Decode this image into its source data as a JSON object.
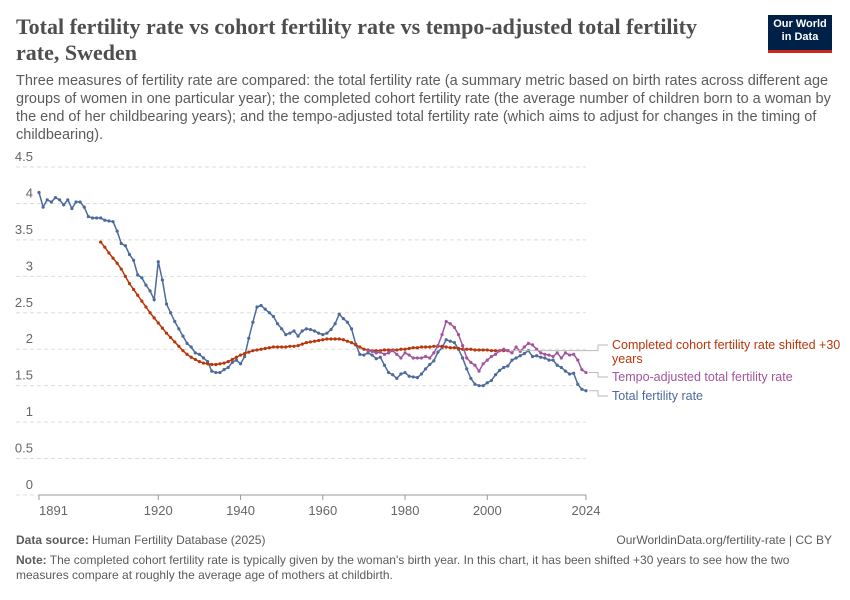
{
  "chart_data": {
    "type": "line",
    "title": "Total fertility rate vs cohort fertility rate vs tempo-adjusted total fertility rate, Sweden",
    "subtitle": "Three measures of fertility rate are compared: the total fertility rate (a summary metric based on birth rates across different age groups of women in one particular year); the completed cohort fertility rate (the average number of children born to a woman by the end of her childbearing years); and the tempo-adjusted total fertility rate (which aims to adjust for changes in the timing of childbearing).",
    "logo": "Our World in Data",
    "source_label": "Data source:",
    "source": "Human Fertility Database (2025)",
    "url": "OurWorldinData.org/fertility-rate | CC BY",
    "note_label": "Note:",
    "note": "The completed cohort fertility rate is typically given by the woman's birth year. In this chart, it has been shifted +30 years to see how the two measures compare at roughly the average age of mothers at childbirth.",
    "xlim": [
      1891,
      2024
    ],
    "xticks": [
      1891,
      1920,
      1940,
      1960,
      1980,
      2000,
      2024
    ],
    "ylim": [
      0,
      4.5
    ],
    "yticks": [
      0,
      0.5,
      1,
      1.5,
      2,
      2.5,
      3,
      3.5,
      4,
      4.5
    ],
    "grid": true,
    "x": [
      1891,
      1892,
      1893,
      1894,
      1895,
      1896,
      1897,
      1898,
      1899,
      1900,
      1901,
      1902,
      1903,
      1904,
      1905,
      1906,
      1907,
      1908,
      1909,
      1910,
      1911,
      1912,
      1913,
      1914,
      1915,
      1916,
      1917,
      1918,
      1919,
      1920,
      1921,
      1922,
      1923,
      1924,
      1925,
      1926,
      1927,
      1928,
      1929,
      1930,
      1931,
      1932,
      1933,
      1934,
      1935,
      1936,
      1937,
      1938,
      1939,
      1940,
      1941,
      1942,
      1943,
      1944,
      1945,
      1946,
      1947,
      1948,
      1949,
      1950,
      1951,
      1952,
      1953,
      1954,
      1955,
      1956,
      1957,
      1958,
      1959,
      1960,
      1961,
      1962,
      1963,
      1964,
      1965,
      1966,
      1967,
      1968,
      1969,
      1970,
      1971,
      1972,
      1973,
      1974,
      1975,
      1976,
      1977,
      1978,
      1979,
      1980,
      1981,
      1982,
      1983,
      1984,
      1985,
      1986,
      1987,
      1988,
      1989,
      1990,
      1991,
      1992,
      1993,
      1994,
      1995,
      1996,
      1997,
      1998,
      1999,
      2000,
      2001,
      2002,
      2003,
      2004,
      2005,
      2006,
      2007,
      2008,
      2009,
      2010,
      2011,
      2012,
      2013,
      2014,
      2015,
      2016,
      2017,
      2018,
      2019,
      2020,
      2021,
      2022,
      2023,
      2024
    ],
    "series": [
      {
        "name": "Total fertility rate",
        "color": "#4c6a9c",
        "values": [
          4.15,
          3.95,
          4.05,
          4.02,
          4.08,
          4.05,
          3.98,
          4.05,
          3.93,
          4.02,
          4.02,
          3.95,
          3.82,
          3.8,
          3.8,
          3.8,
          3.77,
          3.76,
          3.75,
          3.62,
          3.45,
          3.42,
          3.3,
          3.22,
          3.02,
          2.98,
          2.88,
          2.8,
          2.68,
          3.2,
          2.95,
          2.62,
          2.5,
          2.38,
          2.28,
          2.18,
          2.08,
          2.03,
          1.95,
          1.93,
          1.88,
          1.83,
          1.7,
          1.68,
          1.68,
          1.72,
          1.75,
          1.82,
          1.85,
          1.8,
          1.9,
          2.15,
          2.37,
          2.58,
          2.6,
          2.55,
          2.5,
          2.45,
          2.35,
          2.28,
          2.2,
          2.22,
          2.25,
          2.18,
          2.25,
          2.28,
          2.27,
          2.25,
          2.22,
          2.2,
          2.22,
          2.27,
          2.35,
          2.48,
          2.42,
          2.37,
          2.28,
          2.07,
          1.93,
          1.92,
          1.95,
          1.92,
          1.87,
          1.89,
          1.78,
          1.68,
          1.65,
          1.6,
          1.66,
          1.68,
          1.63,
          1.62,
          1.61,
          1.66,
          1.73,
          1.79,
          1.84,
          1.96,
          2.02,
          2.13,
          2.11,
          2.09,
          2.0,
          1.88,
          1.73,
          1.6,
          1.52,
          1.5,
          1.5,
          1.54,
          1.57,
          1.65,
          1.71,
          1.75,
          1.77,
          1.85,
          1.88,
          1.91,
          1.94,
          1.98,
          1.9,
          1.91,
          1.89,
          1.88,
          1.85,
          1.85,
          1.78,
          1.75,
          1.7,
          1.66,
          1.67,
          1.52,
          1.45,
          1.43
        ]
      },
      {
        "name": "Completed cohort fertility rate shifted +30 years",
        "color": "#b8360a",
        "values": [
          null,
          null,
          null,
          null,
          null,
          null,
          null,
          null,
          null,
          null,
          null,
          null,
          null,
          null,
          null,
          3.47,
          3.4,
          3.32,
          3.25,
          3.18,
          3.1,
          3.0,
          2.9,
          2.82,
          2.74,
          2.66,
          2.58,
          2.5,
          2.43,
          2.36,
          2.29,
          2.22,
          2.16,
          2.1,
          2.04,
          1.98,
          1.93,
          1.89,
          1.86,
          1.83,
          1.81,
          1.8,
          1.79,
          1.79,
          1.8,
          1.81,
          1.83,
          1.86,
          1.89,
          1.92,
          1.94,
          1.96,
          1.98,
          1.99,
          2.0,
          2.01,
          2.02,
          2.03,
          2.03,
          2.03,
          2.03,
          2.04,
          2.04,
          2.05,
          2.07,
          2.09,
          2.1,
          2.11,
          2.12,
          2.13,
          2.14,
          2.14,
          2.14,
          2.14,
          2.13,
          2.11,
          2.09,
          2.06,
          2.03,
          2.0,
          1.99,
          1.98,
          1.98,
          1.98,
          1.99,
          1.99,
          1.99,
          1.99,
          2.0,
          2.0,
          2.01,
          2.02,
          2.02,
          2.03,
          2.03,
          2.03,
          2.04,
          2.04,
          2.04,
          2.03,
          2.02,
          2.02,
          2.01,
          2.0,
          2.0,
          2.0,
          1.99,
          1.99,
          1.99,
          1.99,
          1.98,
          1.98,
          1.98,
          1.98,
          1.98,
          null,
          null,
          null,
          null,
          null,
          null,
          null,
          null,
          null,
          null,
          null,
          null,
          null,
          null,
          null,
          null,
          null,
          null,
          null
        ]
      },
      {
        "name": "Tempo-adjusted total fertility rate",
        "color": "#a2559c",
        "values": [
          null,
          null,
          null,
          null,
          null,
          null,
          null,
          null,
          null,
          null,
          null,
          null,
          null,
          null,
          null,
          null,
          null,
          null,
          null,
          null,
          null,
          null,
          null,
          null,
          null,
          null,
          null,
          null,
          null,
          null,
          null,
          null,
          null,
          null,
          null,
          null,
          null,
          null,
          null,
          null,
          null,
          null,
          null,
          null,
          null,
          null,
          null,
          null,
          null,
          null,
          null,
          null,
          null,
          null,
          null,
          null,
          null,
          null,
          null,
          null,
          null,
          null,
          null,
          null,
          null,
          null,
          null,
          null,
          null,
          null,
          null,
          null,
          null,
          null,
          null,
          null,
          null,
          null,
          null,
          null,
          1.98,
          1.97,
          1.95,
          1.96,
          1.93,
          1.95,
          1.98,
          1.93,
          1.88,
          1.95,
          1.92,
          1.88,
          1.88,
          1.88,
          1.9,
          1.88,
          1.95,
          2.05,
          2.2,
          2.38,
          2.35,
          2.3,
          2.2,
          2.05,
          1.88,
          1.82,
          1.78,
          1.7,
          1.8,
          1.85,
          1.9,
          1.93,
          1.98,
          2.0,
          1.98,
          1.95,
          2.03,
          1.97,
          2.03,
          2.08,
          2.06,
          2.0,
          1.95,
          1.93,
          1.92,
          1.9,
          1.95,
          1.88,
          1.95,
          1.92,
          1.93,
          1.85,
          1.72,
          1.68
        ]
      }
    ]
  }
}
